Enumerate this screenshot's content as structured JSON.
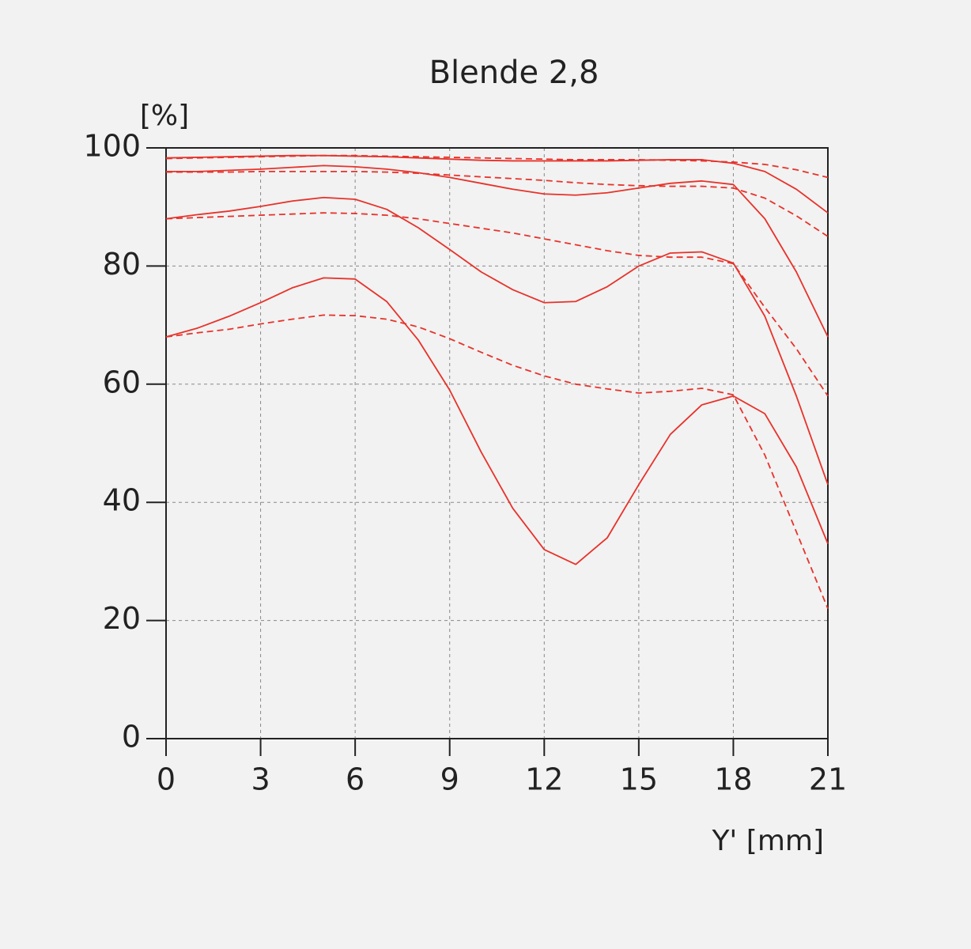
{
  "chart_data": {
    "type": "line",
    "title": "Blende 2,8",
    "y_label": "[%]",
    "x_label": "Y' [mm]",
    "x": [
      0,
      1,
      2,
      3,
      4,
      5,
      6,
      7,
      8,
      9,
      10,
      11,
      12,
      13,
      14,
      15,
      16,
      17,
      18,
      19,
      20,
      21
    ],
    "series": [
      {
        "color": "#e8322a",
        "style": "solid",
        "values": [
          98.3,
          98.4,
          98.5,
          98.6,
          98.7,
          98.7,
          98.6,
          98.5,
          98.3,
          98.1,
          97.9,
          97.8,
          97.8,
          97.8,
          97.8,
          97.9,
          98,
          98,
          97.4,
          96,
          93,
          89
        ]
      },
      {
        "color": "#e8322a",
        "style": "dashed",
        "values": [
          98.2,
          98.3,
          98.4,
          98.5,
          98.6,
          98.7,
          98.7,
          98.6,
          98.5,
          98.4,
          98.3,
          98.2,
          98.1,
          98,
          98,
          98,
          97.9,
          97.8,
          97.6,
          97.2,
          96.3,
          95
        ]
      },
      {
        "color": "#e8322a",
        "style": "solid",
        "values": [
          96,
          96,
          96.2,
          96.4,
          96.7,
          97,
          96.8,
          96.4,
          95.8,
          95,
          94,
          93,
          92.2,
          92,
          92.4,
          93.2,
          94,
          94.4,
          93.8,
          88,
          79,
          68
        ]
      },
      {
        "color": "#e8322a",
        "style": "dashed",
        "values": [
          95.9,
          95.9,
          95.9,
          96,
          96,
          96,
          96,
          95.9,
          95.7,
          95.4,
          95.1,
          94.8,
          94.5,
          94.1,
          93.8,
          93.6,
          93.5,
          93.5,
          93.2,
          91.5,
          88.5,
          85
        ]
      },
      {
        "color": "#e8322a",
        "style": "solid",
        "values": [
          88,
          88.7,
          89.3,
          90.1,
          91,
          91.6,
          91.3,
          89.6,
          86.5,
          82.8,
          79,
          76,
          73.8,
          74,
          76.5,
          80,
          82.2,
          82.4,
          80.5,
          71.5,
          58,
          43
        ]
      },
      {
        "color": "#e8322a",
        "style": "dashed",
        "values": [
          88,
          88.2,
          88.4,
          88.6,
          88.8,
          89,
          88.9,
          88.6,
          88,
          87.2,
          86.4,
          85.6,
          84.6,
          83.6,
          82.6,
          81.8,
          81.5,
          81.5,
          80.4,
          73,
          66,
          58
        ]
      },
      {
        "color": "#e8322a",
        "style": "solid",
        "values": [
          68,
          69.5,
          71.5,
          73.8,
          76.3,
          78,
          77.8,
          74,
          67.5,
          59,
          48.5,
          39,
          32,
          29.5,
          34,
          43,
          51.5,
          56.5,
          58,
          55,
          46,
          33
        ]
      },
      {
        "color": "#e8322a",
        "style": "dashed",
        "values": [
          68,
          68.7,
          69.3,
          70.2,
          71,
          71.7,
          71.6,
          71,
          69.7,
          67.7,
          65.4,
          63.2,
          61.4,
          60,
          59.2,
          58.5,
          58.8,
          59.3,
          58.2,
          48,
          35,
          22
        ]
      }
    ],
    "xlim": [
      0,
      21
    ],
    "xticks": [
      0,
      3,
      6,
      9,
      12,
      15,
      18,
      21
    ],
    "ylim": [
      0,
      100
    ],
    "yticks": [
      0,
      20,
      40,
      60,
      80,
      100
    ],
    "grid": true
  }
}
